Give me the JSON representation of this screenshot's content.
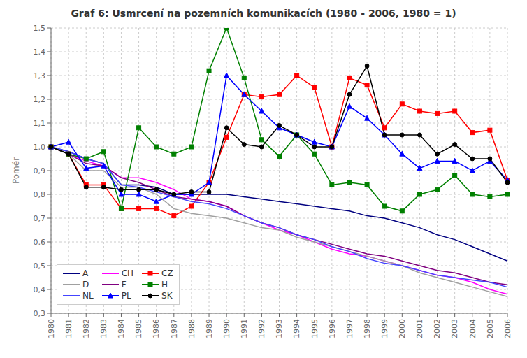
{
  "chart_data": {
    "type": "line",
    "title": "Graf 6: Usmrcení na pozemních komunikacích  (1980 - 2006, 1980 = 1)",
    "y_label": "Poměr",
    "categories": [
      "1980",
      "1981",
      "1982",
      "1983",
      "1984",
      "1985",
      "1986",
      "1987",
      "1988",
      "1989",
      "1990",
      "1991",
      "1992",
      "1993",
      "1994",
      "1995",
      "1996",
      "1997",
      "1998",
      "1999",
      "2000",
      "2001",
      "2002",
      "2003",
      "2004",
      "2005",
      "2006"
    ],
    "series": [
      {
        "name": "A",
        "color": "#000080",
        "marker": "none",
        "values": [
          1.0,
          0.98,
          0.95,
          0.93,
          0.84,
          0.84,
          0.83,
          0.8,
          0.8,
          0.8,
          0.8,
          0.79,
          0.78,
          0.77,
          0.76,
          0.75,
          0.74,
          0.73,
          0.71,
          0.7,
          0.68,
          0.66,
          0.63,
          0.61,
          0.58,
          0.55,
          0.52
        ]
      },
      {
        "name": "CH",
        "color": "#FF00FF",
        "marker": "none",
        "values": [
          1.0,
          0.97,
          0.94,
          0.92,
          0.87,
          0.87,
          0.85,
          0.82,
          0.78,
          0.77,
          0.75,
          0.71,
          0.68,
          0.65,
          0.63,
          0.6,
          0.57,
          0.55,
          0.54,
          0.52,
          0.5,
          0.48,
          0.46,
          0.45,
          0.43,
          0.4,
          0.38
        ]
      },
      {
        "name": "CZ",
        "color": "#FF0000",
        "marker": "square",
        "values": [
          1.0,
          0.97,
          0.84,
          0.84,
          0.74,
          0.74,
          0.74,
          0.71,
          0.75,
          0.85,
          1.04,
          1.22,
          1.21,
          1.22,
          1.3,
          1.25,
          1.0,
          1.29,
          1.26,
          1.08,
          1.18,
          1.15,
          1.14,
          1.15,
          1.06,
          1.07,
          0.86
        ]
      },
      {
        "name": "D",
        "color": "#A0A0A0",
        "marker": "none",
        "values": [
          1.0,
          0.97,
          0.9,
          0.9,
          0.83,
          0.83,
          0.8,
          0.74,
          0.72,
          0.71,
          0.7,
          0.68,
          0.66,
          0.65,
          0.62,
          0.6,
          0.58,
          0.56,
          0.54,
          0.52,
          0.5,
          0.47,
          0.45,
          0.43,
          0.41,
          0.39,
          0.37
        ]
      },
      {
        "name": "F",
        "color": "#800080",
        "marker": "none",
        "values": [
          1.0,
          0.97,
          0.93,
          0.92,
          0.87,
          0.85,
          0.82,
          0.79,
          0.78,
          0.77,
          0.75,
          0.71,
          0.68,
          0.66,
          0.63,
          0.61,
          0.59,
          0.57,
          0.55,
          0.54,
          0.52,
          0.5,
          0.48,
          0.47,
          0.45,
          0.43,
          0.42
        ]
      },
      {
        "name": "H",
        "color": "#008000",
        "marker": "square",
        "values": [
          1.0,
          0.97,
          0.95,
          0.98,
          0.74,
          1.08,
          1.0,
          0.97,
          1.0,
          1.32,
          1.5,
          1.29,
          1.03,
          0.96,
          1.05,
          0.97,
          0.84,
          0.85,
          0.84,
          0.75,
          0.73,
          0.8,
          0.82,
          0.88,
          0.8,
          0.79,
          0.8
        ]
      },
      {
        "name": "NL",
        "color": "#4444FF",
        "marker": "none",
        "values": [
          1.0,
          0.98,
          0.95,
          0.93,
          0.84,
          0.83,
          0.81,
          0.79,
          0.77,
          0.76,
          0.74,
          0.71,
          0.68,
          0.66,
          0.63,
          0.61,
          0.58,
          0.56,
          0.53,
          0.51,
          0.5,
          0.48,
          0.46,
          0.45,
          0.44,
          0.43,
          0.41
        ]
      },
      {
        "name": "PL",
        "color": "#0000FF",
        "marker": "triangle",
        "values": [
          1.0,
          1.02,
          0.91,
          0.92,
          0.8,
          0.8,
          0.77,
          0.8,
          0.8,
          0.85,
          1.3,
          1.22,
          1.15,
          1.08,
          1.05,
          1.02,
          1.0,
          1.17,
          1.12,
          1.05,
          0.97,
          0.91,
          0.94,
          0.94,
          0.9,
          0.94,
          0.86
        ]
      },
      {
        "name": "SK",
        "color": "#000000",
        "marker": "circle",
        "values": [
          1.0,
          0.97,
          0.83,
          0.83,
          0.82,
          0.82,
          0.82,
          0.8,
          0.81,
          0.81,
          1.08,
          1.01,
          1.0,
          1.09,
          1.05,
          1.0,
          1.0,
          1.22,
          1.34,
          1.05,
          1.05,
          1.05,
          0.97,
          1.01,
          0.95,
          0.95,
          0.85
        ]
      }
    ],
    "ylim": [
      0.3,
      1.5
    ],
    "yticks": [
      {
        "value": 0.3,
        "label": "0,3"
      },
      {
        "value": 0.4,
        "label": "0,4"
      },
      {
        "value": 0.5,
        "label": "0,5"
      },
      {
        "value": 0.6,
        "label": "0,6"
      },
      {
        "value": 0.7,
        "label": "0,7"
      },
      {
        "value": 0.8,
        "label": "0,8"
      },
      {
        "value": 0.9,
        "label": "0,9"
      },
      {
        "value": 1.0,
        "label": "1,0"
      },
      {
        "value": 1.1,
        "label": "1,1"
      },
      {
        "value": 1.2,
        "label": "1,2"
      },
      {
        "value": 1.3,
        "label": "1,3"
      },
      {
        "value": 1.4,
        "label": "1,4"
      },
      {
        "value": 1.5,
        "label": "1,5"
      }
    ],
    "grid": true,
    "legend": "lower left"
  }
}
